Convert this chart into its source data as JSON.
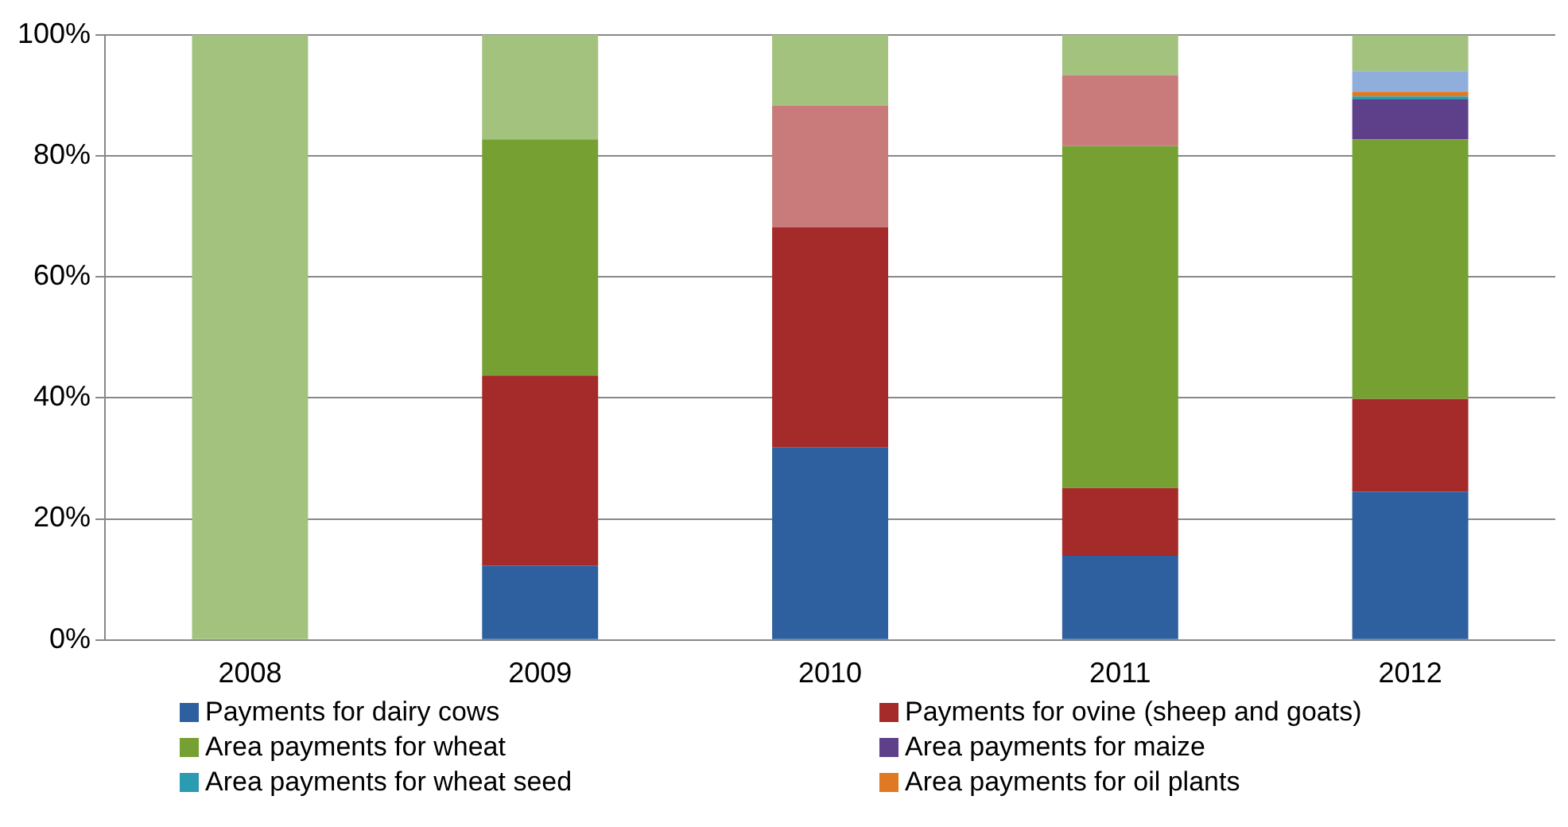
{
  "chart_data": {
    "type": "bar",
    "stacked": true,
    "categories": [
      "2008",
      "2009",
      "2010",
      "2011",
      "2012"
    ],
    "series": [
      {
        "name": "Payments for dairy cows",
        "color": "#2e5f9e",
        "values": [
          0,
          12.3,
          31.8,
          13.9,
          24.5
        ]
      },
      {
        "name": "Payments for ovine (sheep and goats)",
        "color": "#a52a2a",
        "values": [
          0,
          31.4,
          36.4,
          11.2,
          15.3
        ]
      },
      {
        "name": "Area payments for wheat",
        "color": "#77a033",
        "values": [
          0,
          39,
          0,
          56.5,
          42.9
        ]
      },
      {
        "name": "Area payments for maize",
        "color": "#5e3f8a",
        "values": [
          0,
          0,
          0,
          0,
          6.6
        ]
      },
      {
        "name": "Area payments for wheat seed",
        "color": "#2a9bb0",
        "values": [
          0,
          0,
          0,
          0,
          0.5
        ]
      },
      {
        "name": "Area payments for oil plants",
        "color": "#e07a22",
        "values": [
          0,
          0,
          0,
          0,
          0.8
        ]
      },
      {
        "color": "#8faedc",
        "values": [
          0,
          0,
          0,
          0,
          3.4
        ]
      },
      {
        "color": "#c97a7a",
        "values": [
          0,
          0,
          20.1,
          11.7,
          0
        ]
      },
      {
        "color": "#a3c27e",
        "values": [
          100,
          17.3,
          11.7,
          6.7,
          5.9
        ]
      }
    ],
    "ylim": [
      0,
      100
    ],
    "yticks": [
      {
        "value": 0,
        "label": "0%"
      },
      {
        "value": 20,
        "label": "20%"
      },
      {
        "value": 40,
        "label": "40%"
      },
      {
        "value": 60,
        "label": "60%"
      },
      {
        "value": 80,
        "label": "80%"
      },
      {
        "value": 100,
        "label": "100%"
      }
    ],
    "grid": "y",
    "legend": "bottom"
  }
}
